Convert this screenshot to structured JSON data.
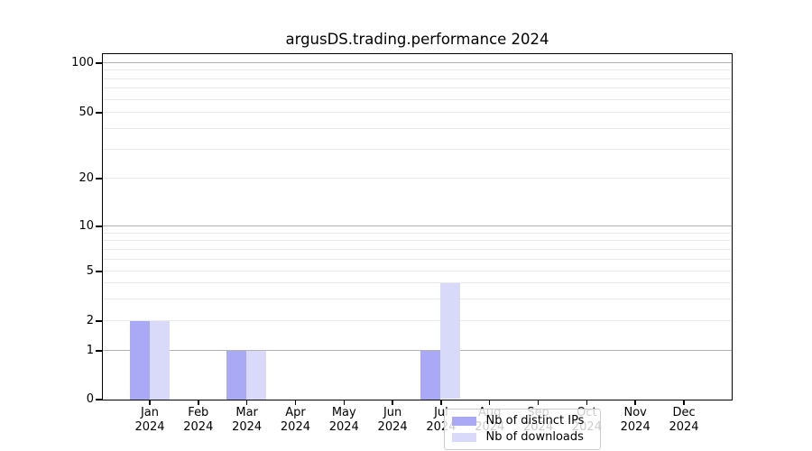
{
  "title": "argusDS.trading.performance 2024",
  "chart_data": {
    "type": "bar",
    "title": "argusDS.trading.performance 2024",
    "categories": [
      "Jan",
      "Feb",
      "Mar",
      "Apr",
      "May",
      "Jun",
      "Jul",
      "Aug",
      "Sep",
      "Oct",
      "Nov",
      "Dec"
    ],
    "category_year": "2024",
    "series": [
      {
        "name": "Nb of distinct IPs",
        "color": "#a9a9f5",
        "values": [
          2,
          0,
          1,
          0,
          0,
          0,
          1,
          0,
          0,
          0,
          0,
          0
        ]
      },
      {
        "name": "Nb of downloads",
        "color": "#d9d9f9",
        "values": [
          2,
          0,
          1,
          0,
          0,
          0,
          4,
          0,
          0,
          0,
          0,
          0
        ]
      }
    ],
    "xlabel": "",
    "ylabel": "",
    "yscale": "symlog (log axis that also shows 0)",
    "yticks": [
      0,
      1,
      2,
      5,
      10,
      20,
      50,
      100
    ],
    "minor_grid_values": [
      2,
      3,
      4,
      5,
      6,
      7,
      8,
      9,
      20,
      30,
      40,
      50,
      60,
      70,
      80,
      90
    ],
    "major_grid_values": [
      1,
      10,
      100
    ],
    "ylim": [
      0,
      115
    ],
    "grid": "horizontal major and minor gridlines",
    "legend_position": "lower center inside plot"
  },
  "legend": {
    "items": [
      {
        "label": "Nb of distinct IPs"
      },
      {
        "label": "Nb of downloads"
      }
    ]
  },
  "colors": {
    "bar_ips": "#a9a9f5",
    "bar_downloads": "#d9d9f9",
    "grid_major": "#b3b3b3",
    "grid_minor": "#eaeaea",
    "spine": "#000000",
    "text": "#000000",
    "legend_border": "#cccccc",
    "legend_background": "rgba(255,255,255,0.8)"
  }
}
